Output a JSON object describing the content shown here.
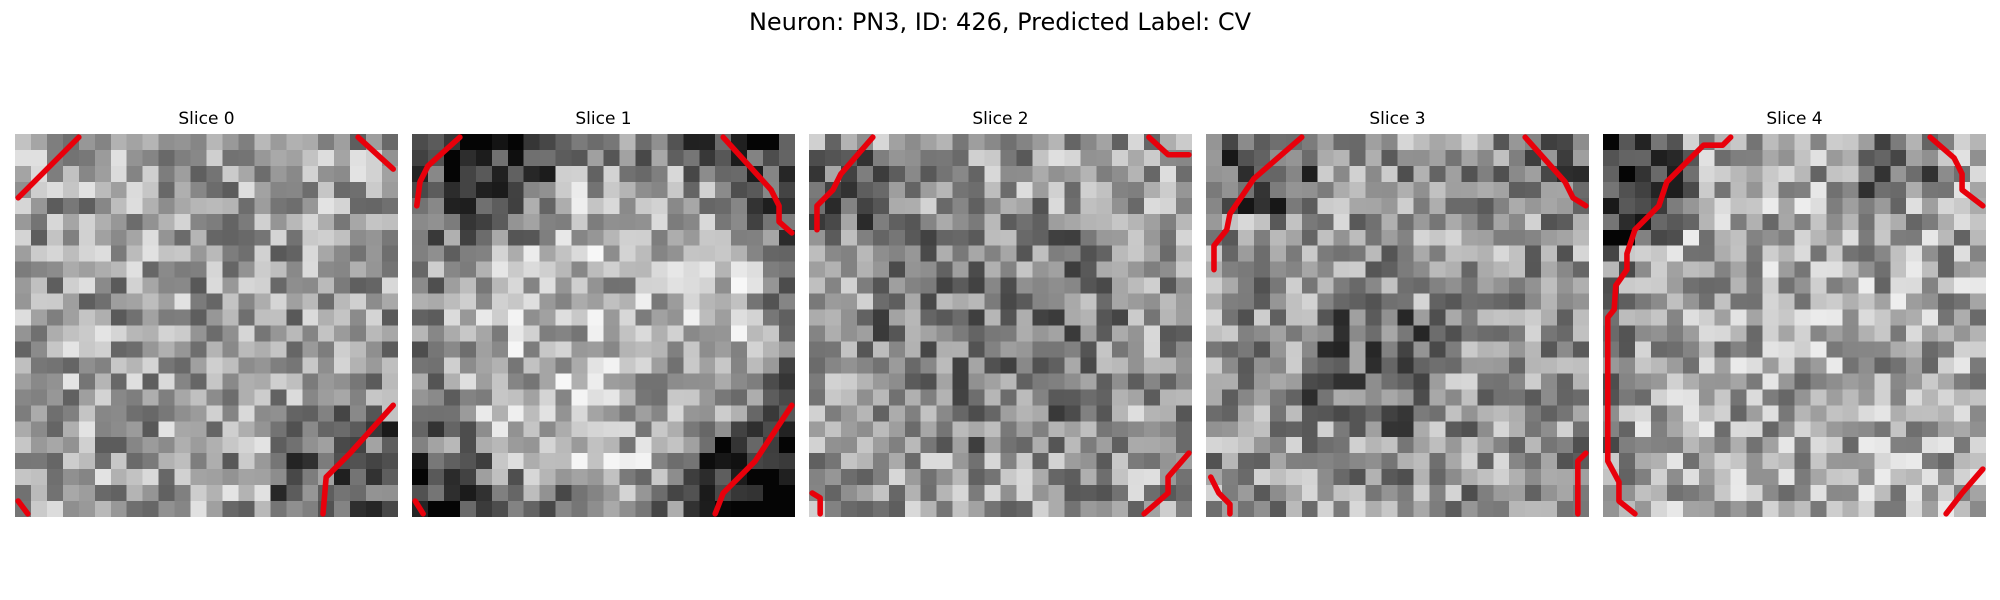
{
  "figure": {
    "title": "Neuron: PN3, ID: 426, Predicted Label: CV"
  },
  "style": {
    "contour_color": "#e8000b",
    "colormap": "gray"
  },
  "panels": [
    {
      "title": "Slice 0",
      "icon": "grayscale-noise-image"
    },
    {
      "title": "Slice 1",
      "icon": "grayscale-noise-image"
    },
    {
      "title": "Slice 2",
      "icon": "grayscale-noise-image"
    },
    {
      "title": "Slice 3",
      "icon": "grayscale-noise-image"
    },
    {
      "title": "Slice 4",
      "icon": "grayscale-noise-image"
    }
  ]
}
